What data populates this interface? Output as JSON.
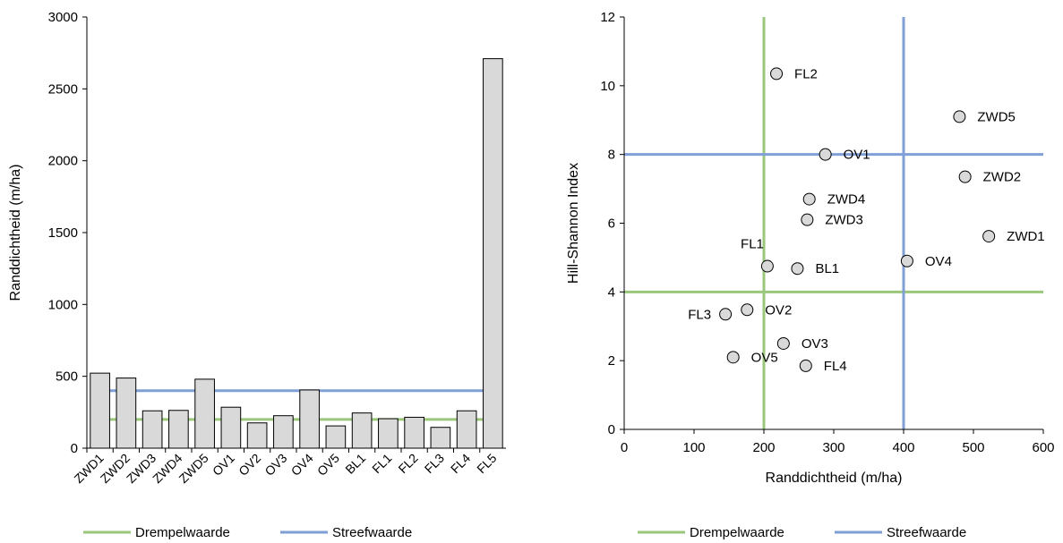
{
  "chart_data": [
    {
      "type": "bar",
      "categories": [
        "ZWD1",
        "ZWD2",
        "ZWD3",
        "ZWD4",
        "ZWD5",
        "OV1",
        "OV2",
        "OV3",
        "OV4",
        "OV5",
        "BL1",
        "FL1",
        "FL2",
        "FL3",
        "FL4",
        "FL5"
      ],
      "values": [
        522,
        488,
        260,
        263,
        480,
        285,
        176,
        226,
        405,
        155,
        245,
        205,
        215,
        145,
        260,
        2710
      ],
      "title": "",
      "xlabel": "",
      "ylabel": "Randdichtheid (m/ha)",
      "ylim": [
        0,
        3000
      ],
      "yticks": [
        "0",
        "500",
        "1000",
        "1500",
        "2000",
        "2500",
        "3000"
      ],
      "bar_fill": "#d9d9d9",
      "bar_stroke": "#000000",
      "reference_lines": [
        {
          "name": "Drempelwaarde",
          "value": 200,
          "color": "#9bc77c"
        },
        {
          "name": "Streefwaarde",
          "value": 400,
          "color": "#7f9fd6"
        }
      ],
      "grid": false,
      "legend_placement": "bottom"
    },
    {
      "type": "scatter",
      "points": [
        {
          "label": "FL2",
          "x": 218,
          "y": 10.35
        },
        {
          "label": "ZWD5",
          "x": 480,
          "y": 9.1
        },
        {
          "label": "OV1",
          "x": 288,
          "y": 8.0
        },
        {
          "label": "ZWD2",
          "x": 488,
          "y": 7.35
        },
        {
          "label": "ZWD4",
          "x": 265,
          "y": 6.7
        },
        {
          "label": "ZWD3",
          "x": 262,
          "y": 6.1
        },
        {
          "label": "ZWD1",
          "x": 522,
          "y": 5.62
        },
        {
          "label": "FL1",
          "x": 205,
          "y": 4.75
        },
        {
          "label": "BL1",
          "x": 248,
          "y": 4.68
        },
        {
          "label": "OV4",
          "x": 405,
          "y": 4.9
        },
        {
          "label": "FL3",
          "x": 145,
          "y": 3.35
        },
        {
          "label": "OV2",
          "x": 176,
          "y": 3.48
        },
        {
          "label": "OV3",
          "x": 228,
          "y": 2.5
        },
        {
          "label": "OV5",
          "x": 156,
          "y": 2.1
        },
        {
          "label": "FL4",
          "x": 260,
          "y": 1.85
        }
      ],
      "title": "",
      "xlabel": "Randdichtheid (m/ha)",
      "ylabel": "Hill-Shannon Index",
      "xlim": [
        0,
        600
      ],
      "ylim": [
        0,
        12
      ],
      "xticks": [
        "0",
        "100",
        "200",
        "300",
        "400",
        "500",
        "600"
      ],
      "yticks": [
        "0",
        "2",
        "4",
        "6",
        "8",
        "10",
        "12"
      ],
      "marker_fill": "#d9d9d9",
      "marker_stroke": "#000000",
      "reference_lines": [
        {
          "name": "Drempelwaarde",
          "axis": "x",
          "value": 200,
          "color": "#9bc77c"
        },
        {
          "name": "Drempelwaarde",
          "axis": "y",
          "value": 4,
          "color": "#9bc77c"
        },
        {
          "name": "Streefwaarde",
          "axis": "x",
          "value": 400,
          "color": "#7f9fd6"
        },
        {
          "name": "Streefwaarde",
          "axis": "y",
          "value": 8,
          "color": "#7f9fd6"
        }
      ],
      "grid": false,
      "legend_placement": "bottom"
    }
  ],
  "legend": {
    "threshold_label": "Drempelwaarde",
    "target_label": "Streefwaarde"
  }
}
